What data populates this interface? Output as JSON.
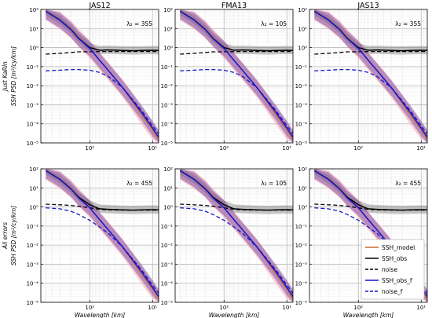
{
  "chart_data": {
    "type": "line",
    "layout": "2 rows x 3 columns of log-log PSD panels",
    "column_titles": [
      "JAS12",
      "FMA13",
      "JAS13"
    ],
    "row_labels": [
      [
        "Just KaRIn",
        "SSH PSD [m²/cy/km]"
      ],
      [
        "All errors",
        "SSH PSD [m²/cy/km]"
      ]
    ],
    "xlabel": "Wavelength [km]",
    "x_scale": "log",
    "x_reversed": true,
    "xlim": [
      600,
      8
    ],
    "y_scale": "log",
    "ylim": [
      1e-05,
      100
    ],
    "x_ticks": [
      100,
      10
    ],
    "x_tick_labels": [
      "10²",
      "10¹"
    ],
    "y_ticks": [
      100,
      10,
      1,
      0.1,
      0.01,
      0.001,
      0.0001,
      1e-05
    ],
    "y_tick_labels": [
      "10²",
      "10¹",
      "10⁰",
      "10⁻¹",
      "10⁻²",
      "10⁻³",
      "10⁻⁴",
      "10⁻⁵"
    ],
    "grid": true,
    "legend": {
      "panel": "row 2, column 3",
      "placement": "lower-right",
      "entries": [
        {
          "label": "SSH_model",
          "color": "#c8682a",
          "style": "solid"
        },
        {
          "label": "SSH_obs",
          "color": "#000000",
          "style": "solid"
        },
        {
          "label": "noise",
          "color": "#000000",
          "style": "dashed"
        },
        {
          "label": "SSH_obs_f",
          "color": "#1515c8",
          "style": "solid"
        },
        {
          "label": "noise_f",
          "color": "#1515c8",
          "style": "dashed"
        }
      ]
    },
    "colors": {
      "ssh_model": "#c8682a",
      "ssh_obs": "#000000",
      "ssh_obs_f": "#1515c8",
      "obs_band": "#808080",
      "model_band": "#f0a0b0",
      "obs_f_band": "#7040a0"
    },
    "panels": [
      {
        "row": 0,
        "col": 0,
        "title": "JAS12",
        "lambda_label": "λ₂ = 355",
        "x": [
          500,
          300,
          200,
          150,
          100,
          70,
          50,
          30,
          20,
          15,
          10,
          8
        ],
        "ssh_model": [
          85,
          30,
          10,
          3.5,
          0.9,
          0.22,
          0.06,
          0.008,
          0.0012,
          0.0003,
          5e-05,
          1.5e-05
        ],
        "ssh_obs": [
          80,
          28,
          9,
          3,
          1.0,
          0.72,
          0.75,
          0.7,
          0.68,
          0.7,
          0.72,
          0.7
        ],
        "noise": [
          0.45,
          0.5,
          0.55,
          0.6,
          0.6,
          0.62,
          0.62,
          0.62,
          0.62,
          0.62,
          0.62,
          0.62
        ],
        "ssh_obs_f": [
          80,
          28,
          9,
          3,
          0.9,
          0.22,
          0.06,
          0.008,
          0.0014,
          0.0004,
          6e-05,
          2e-05
        ],
        "noise_f": [
          0.06,
          0.065,
          0.07,
          0.07,
          0.065,
          0.05,
          0.03,
          0.008,
          0.0016,
          0.0005,
          8e-05,
          3e-05
        ]
      },
      {
        "row": 0,
        "col": 1,
        "title": "FMA13",
        "lambda_label": "λ₂ = 105",
        "x": [
          500,
          300,
          200,
          150,
          100,
          70,
          50,
          30,
          20,
          15,
          10,
          8
        ],
        "ssh_model": [
          85,
          30,
          10,
          3.5,
          0.9,
          0.22,
          0.06,
          0.008,
          0.0012,
          0.0003,
          5e-05,
          1.5e-05
        ],
        "ssh_obs": [
          80,
          28,
          9,
          3,
          1.0,
          0.72,
          0.75,
          0.7,
          0.68,
          0.7,
          0.72,
          0.7
        ],
        "noise": [
          0.45,
          0.5,
          0.55,
          0.6,
          0.6,
          0.62,
          0.62,
          0.62,
          0.62,
          0.62,
          0.62,
          0.62
        ],
        "ssh_obs_f": [
          80,
          28,
          9,
          3,
          0.9,
          0.22,
          0.06,
          0.008,
          0.0014,
          0.0004,
          6e-05,
          2e-05
        ],
        "noise_f": [
          0.06,
          0.065,
          0.07,
          0.07,
          0.065,
          0.05,
          0.03,
          0.008,
          0.0016,
          0.0005,
          8e-05,
          3e-05
        ]
      },
      {
        "row": 0,
        "col": 2,
        "title": "JAS13",
        "lambda_label": "λ₂ = 355",
        "x": [
          500,
          300,
          200,
          150,
          100,
          70,
          50,
          30,
          20,
          15,
          10,
          8
        ],
        "ssh_model": [
          85,
          30,
          10,
          3.5,
          0.9,
          0.22,
          0.06,
          0.008,
          0.0012,
          0.0003,
          5e-05,
          1.5e-05
        ],
        "ssh_obs": [
          80,
          28,
          9,
          3,
          1.0,
          0.72,
          0.75,
          0.7,
          0.68,
          0.7,
          0.72,
          0.7
        ],
        "noise": [
          0.45,
          0.5,
          0.55,
          0.6,
          0.6,
          0.62,
          0.62,
          0.62,
          0.62,
          0.62,
          0.62,
          0.62
        ],
        "ssh_obs_f": [
          80,
          28,
          9,
          3,
          0.9,
          0.22,
          0.06,
          0.008,
          0.0014,
          0.0004,
          6e-05,
          2e-05
        ],
        "noise_f": [
          0.06,
          0.065,
          0.07,
          0.07,
          0.065,
          0.05,
          0.03,
          0.008,
          0.0016,
          0.0005,
          8e-05,
          3e-05
        ]
      },
      {
        "row": 1,
        "col": 0,
        "title": "",
        "lambda_label": "λ₂ = 455",
        "x": [
          500,
          300,
          200,
          150,
          100,
          70,
          50,
          30,
          20,
          15,
          10,
          8
        ],
        "ssh_model": [
          85,
          30,
          10,
          3.5,
          0.9,
          0.22,
          0.06,
          0.008,
          0.0012,
          0.0003,
          5e-05,
          1.5e-05
        ],
        "ssh_obs": [
          80,
          28,
          9,
          3.2,
          1.3,
          0.8,
          0.75,
          0.7,
          0.68,
          0.7,
          0.72,
          0.7
        ],
        "noise": [
          1.4,
          1.3,
          1.2,
          1.1,
          0.9,
          0.75,
          0.7,
          0.68,
          0.68,
          0.68,
          0.68,
          0.68
        ],
        "ssh_obs_f": [
          80,
          28,
          9,
          3,
          0.9,
          0.22,
          0.06,
          0.008,
          0.0014,
          0.0004,
          6e-05,
          2e-05
        ],
        "noise_f": [
          0.9,
          0.8,
          0.6,
          0.4,
          0.2,
          0.09,
          0.04,
          0.008,
          0.0016,
          0.0005,
          8e-05,
          3e-05
        ]
      },
      {
        "row": 1,
        "col": 1,
        "title": "",
        "lambda_label": "λ₂ = 105",
        "x": [
          500,
          300,
          200,
          150,
          100,
          70,
          50,
          30,
          20,
          15,
          10,
          8
        ],
        "ssh_model": [
          85,
          30,
          10,
          3.5,
          0.9,
          0.22,
          0.06,
          0.008,
          0.0012,
          0.0003,
          5e-05,
          1.5e-05
        ],
        "ssh_obs": [
          80,
          28,
          9,
          3.2,
          1.3,
          0.8,
          0.75,
          0.7,
          0.68,
          0.7,
          0.72,
          0.7
        ],
        "noise": [
          1.4,
          1.3,
          1.2,
          1.1,
          0.9,
          0.75,
          0.7,
          0.68,
          0.68,
          0.68,
          0.68,
          0.68
        ],
        "ssh_obs_f": [
          80,
          28,
          9,
          3,
          0.9,
          0.22,
          0.06,
          0.008,
          0.0014,
          0.0004,
          6e-05,
          2e-05
        ],
        "noise_f": [
          0.9,
          0.8,
          0.6,
          0.4,
          0.2,
          0.09,
          0.04,
          0.008,
          0.0016,
          0.0005,
          8e-05,
          3e-05
        ]
      },
      {
        "row": 1,
        "col": 2,
        "title": "",
        "lambda_label": "λ₂ = 455",
        "x": [
          500,
          300,
          200,
          150,
          100,
          70,
          50,
          30,
          20,
          15,
          10,
          8
        ],
        "ssh_model": [
          85,
          30,
          10,
          3.5,
          0.9,
          0.22,
          0.06,
          0.008,
          0.0012,
          0.0003,
          5e-05,
          1.5e-05
        ],
        "ssh_obs": [
          80,
          28,
          9,
          3.2,
          1.3,
          0.8,
          0.75,
          0.7,
          0.68,
          0.7,
          0.72,
          0.7
        ],
        "noise": [
          1.4,
          1.3,
          1.2,
          1.1,
          0.9,
          0.75,
          0.7,
          0.68,
          0.68,
          0.68,
          0.68,
          0.68
        ],
        "ssh_obs_f": [
          80,
          28,
          9,
          3,
          0.9,
          0.22,
          0.06,
          0.008,
          0.0014,
          0.0004,
          6e-05,
          2e-05
        ],
        "noise_f": [
          0.9,
          0.8,
          0.6,
          0.4,
          0.2,
          0.09,
          0.04,
          0.008,
          0.0016,
          0.0005,
          8e-05,
          3e-05
        ]
      }
    ]
  }
}
